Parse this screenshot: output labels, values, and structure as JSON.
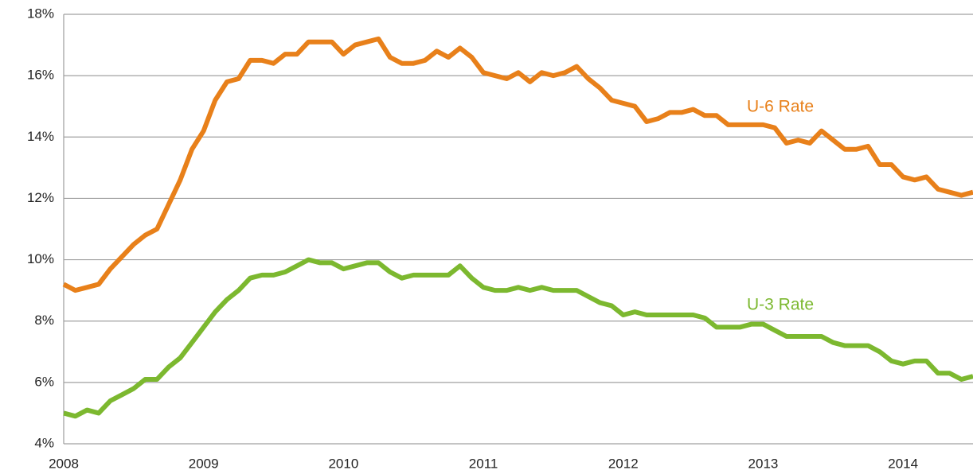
{
  "chart_data": {
    "type": "line",
    "x": [
      2008,
      2008.083,
      2008.167,
      2008.25,
      2008.333,
      2008.417,
      2008.5,
      2008.583,
      2008.667,
      2008.75,
      2008.833,
      2008.917,
      2009,
      2009.083,
      2009.167,
      2009.25,
      2009.333,
      2009.417,
      2009.5,
      2009.583,
      2009.667,
      2009.75,
      2009.833,
      2009.917,
      2010,
      2010.083,
      2010.167,
      2010.25,
      2010.333,
      2010.417,
      2010.5,
      2010.583,
      2010.667,
      2010.75,
      2010.833,
      2010.917,
      2011,
      2011.083,
      2011.167,
      2011.25,
      2011.333,
      2011.417,
      2011.5,
      2011.583,
      2011.667,
      2011.75,
      2011.833,
      2011.917,
      2012,
      2012.083,
      2012.167,
      2012.25,
      2012.333,
      2012.417,
      2012.5,
      2012.583,
      2012.667,
      2012.75,
      2012.833,
      2012.917,
      2013,
      2013.083,
      2013.167,
      2013.25,
      2013.333,
      2013.417,
      2013.5,
      2013.583,
      2013.667,
      2013.75,
      2013.833,
      2013.917,
      2014,
      2014.083,
      2014.167,
      2014.25,
      2014.333,
      2014.417,
      2014.5
    ],
    "series": [
      {
        "name": "U-6 Rate",
        "color": "#e8801a",
        "values": [
          9.2,
          9.0,
          9.1,
          9.2,
          9.7,
          10.1,
          10.5,
          10.8,
          11.0,
          11.8,
          12.6,
          13.6,
          14.2,
          15.2,
          15.8,
          15.9,
          16.5,
          16.5,
          16.4,
          16.7,
          16.7,
          17.1,
          17.1,
          17.1,
          16.7,
          17.0,
          17.1,
          17.2,
          16.6,
          16.4,
          16.4,
          16.5,
          16.8,
          16.6,
          16.9,
          16.6,
          16.1,
          16.0,
          15.9,
          16.1,
          15.8,
          16.1,
          16.0,
          16.1,
          16.3,
          15.9,
          15.6,
          15.2,
          15.1,
          15.0,
          14.5,
          14.6,
          14.8,
          14.8,
          14.9,
          14.7,
          14.7,
          14.4,
          14.4,
          14.4,
          14.4,
          14.3,
          13.8,
          13.9,
          13.8,
          14.2,
          13.9,
          13.6,
          13.6,
          13.7,
          13.1,
          13.1,
          12.7,
          12.6,
          12.7,
          12.3,
          12.2,
          12.1,
          12.2
        ]
      },
      {
        "name": "U-3 Rate",
        "color": "#7cb82f",
        "values": [
          5.0,
          4.9,
          5.1,
          5.0,
          5.4,
          5.6,
          5.8,
          6.1,
          6.1,
          6.5,
          6.8,
          7.3,
          7.8,
          8.3,
          8.7,
          9.0,
          9.4,
          9.5,
          9.5,
          9.6,
          9.8,
          10.0,
          9.9,
          9.9,
          9.7,
          9.8,
          9.9,
          9.9,
          9.6,
          9.4,
          9.5,
          9.5,
          9.5,
          9.5,
          9.8,
          9.4,
          9.1,
          9.0,
          9.0,
          9.1,
          9.0,
          9.1,
          9.0,
          9.0,
          9.0,
          8.8,
          8.6,
          8.5,
          8.2,
          8.3,
          8.2,
          8.2,
          8.2,
          8.2,
          8.2,
          8.1,
          7.8,
          7.8,
          7.8,
          7.9,
          7.9,
          7.7,
          7.5,
          7.5,
          7.5,
          7.5,
          7.3,
          7.2,
          7.2,
          7.2,
          7.0,
          6.7,
          6.6,
          6.7,
          6.7,
          6.3,
          6.3,
          6.1,
          6.2
        ]
      }
    ],
    "xlim": [
      2008,
      2014.5
    ],
    "xticks": [
      2008,
      2009,
      2010,
      2011,
      2012,
      2013,
      2014
    ],
    "ylim": [
      4,
      18
    ],
    "yticks": [
      {
        "value": 4,
        "label": "4%"
      },
      {
        "value": 6,
        "label": "6%"
      },
      {
        "value": 8,
        "label": "8%"
      },
      {
        "value": 10,
        "label": "10%"
      },
      {
        "value": 12,
        "label": "12%"
      },
      {
        "value": 14,
        "label": "14%"
      },
      {
        "value": 16,
        "label": "16%"
      },
      {
        "value": 18,
        "label": "18%"
      }
    ],
    "grid": true
  }
}
